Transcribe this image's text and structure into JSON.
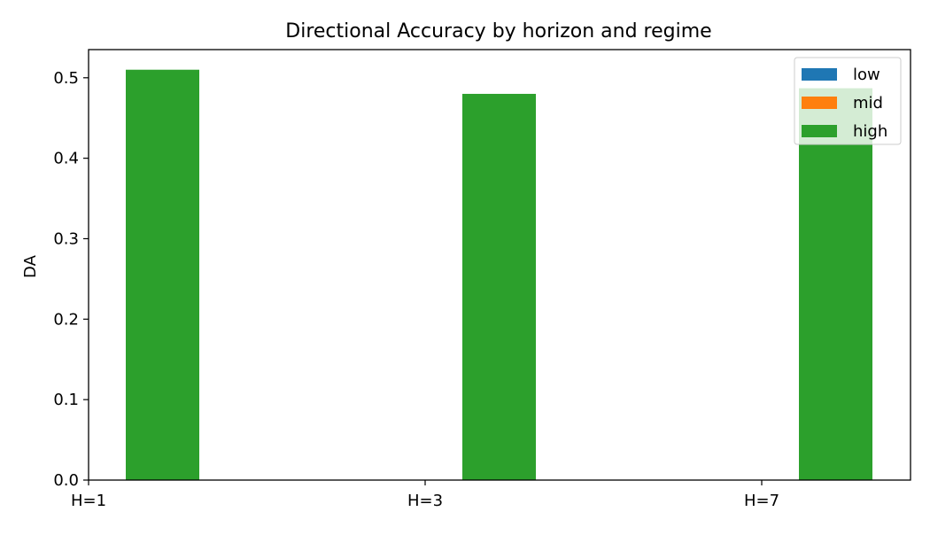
{
  "chart_data": {
    "type": "bar",
    "title": "Directional Accuracy by horizon and regime",
    "xlabel": "",
    "ylabel": "DA",
    "categories": [
      "H=1",
      "H=3",
      "H=7"
    ],
    "series": [
      {
        "name": "low",
        "color": "#1f77b4",
        "values": [
          0,
          0,
          0
        ]
      },
      {
        "name": "mid",
        "color": "#ff7f0e",
        "values": [
          0,
          0,
          0
        ]
      },
      {
        "name": "high",
        "color": "#2ca02c",
        "values": [
          0.51,
          0.48,
          0.487
        ]
      }
    ],
    "ylim": [
      0,
      0.535
    ],
    "yticks": [
      "0.0",
      "0.1",
      "0.2",
      "0.3",
      "0.4",
      "0.5"
    ],
    "grid": false,
    "legend_position": "top-right"
  }
}
